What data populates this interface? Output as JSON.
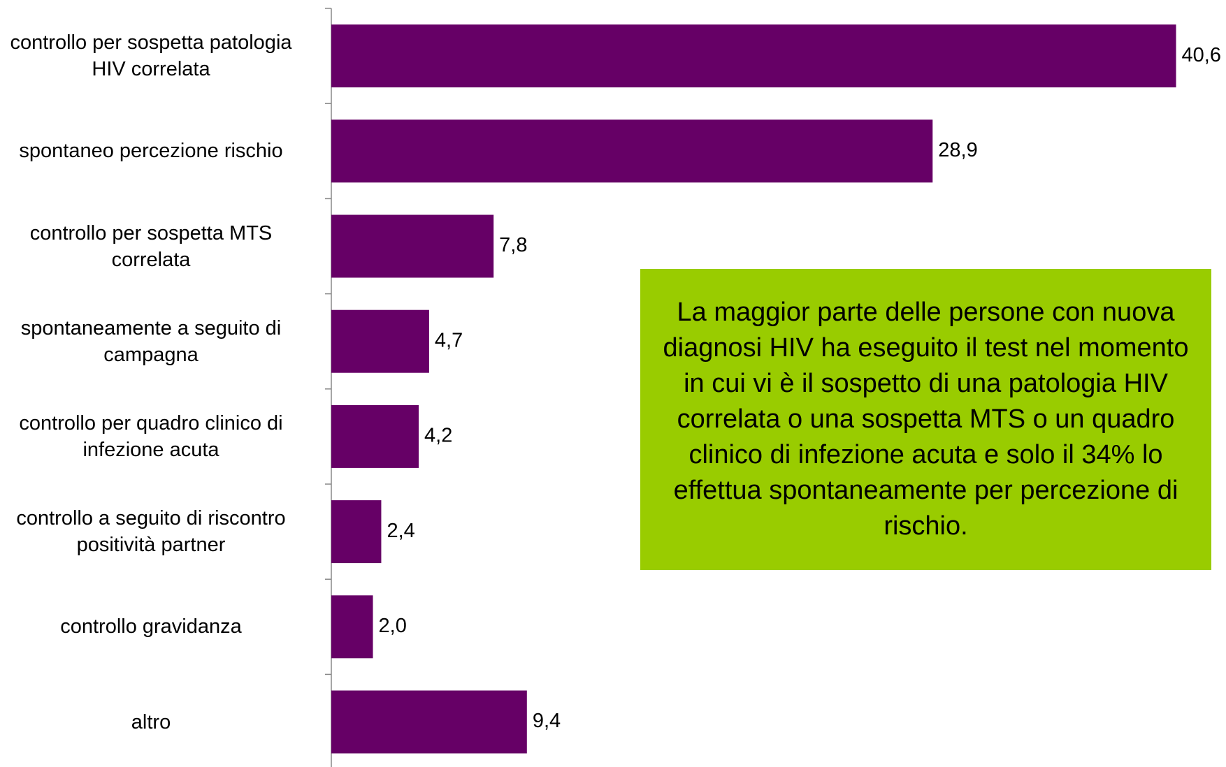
{
  "chart_data": {
    "type": "bar",
    "orientation": "horizontal",
    "categories": [
      "controllo per sospetta patologia\nHIV correlata",
      "spontaneo percezione rischio",
      "controllo per sospetta MTS\ncorrelata",
      "spontaneamente a seguito di\ncampagna",
      "controllo per quadro clinico di\ninfezione acuta",
      "controllo a seguito di riscontro\npositività partner",
      "controllo gravidanza",
      "altro"
    ],
    "values": [
      40.6,
      28.9,
      7.8,
      4.7,
      4.2,
      2.4,
      2.0,
      9.4
    ],
    "value_labels": [
      "40,6",
      "28,9",
      "7,8",
      "4,7",
      "4,2",
      "2,4",
      "2,0",
      "9,4"
    ],
    "color": "#660066",
    "xlim": [
      0,
      43
    ],
    "annotation": "La maggior parte delle persone con nuova diagnosi HIV ha eseguito il test nel momento in cui vi è il sospetto di una patologia HIV correlata o una sospetta MTS o un quadro clinico di infezione acuta e solo il 34% lo effettua spontaneamente per percezione di rischio.",
    "annotation_color": "#99cc00"
  }
}
